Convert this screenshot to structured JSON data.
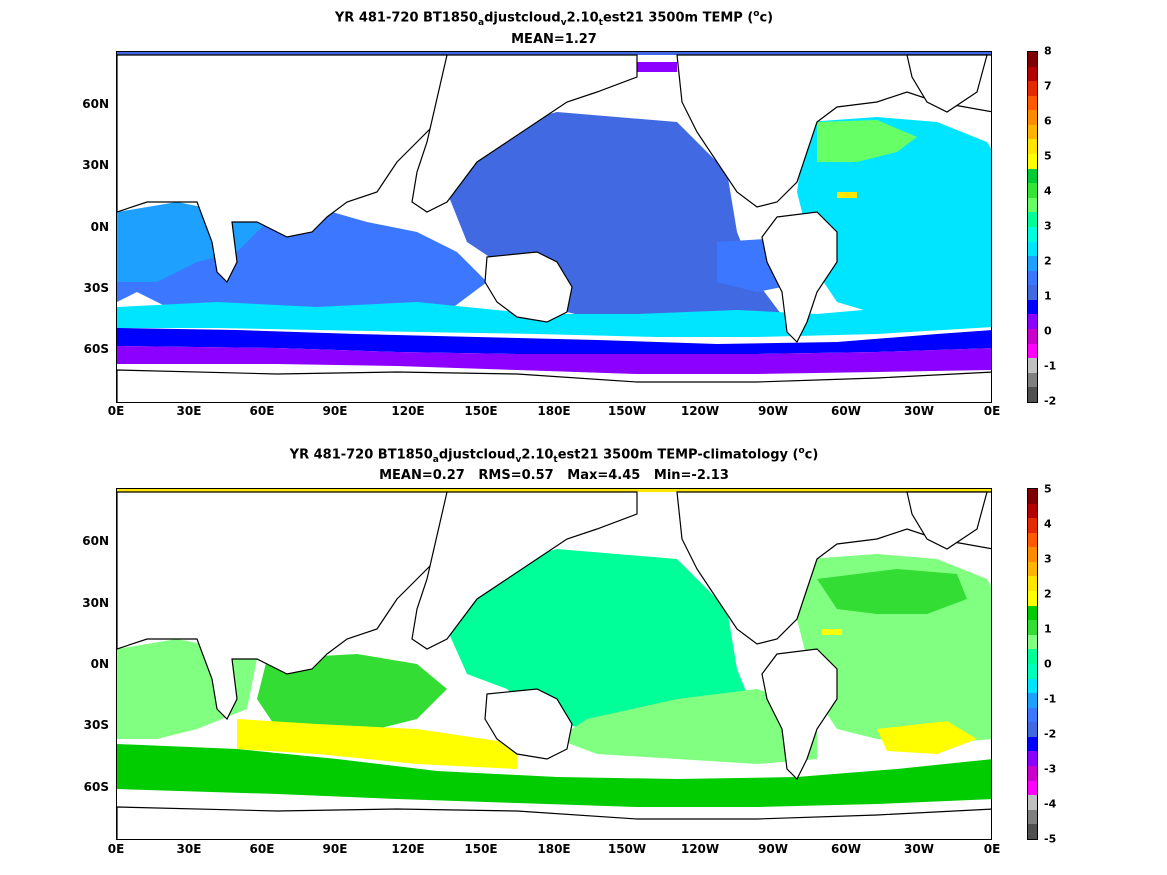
{
  "top_panel": {
    "title": {
      "part1": "YR 481-720 BT1850",
      "sub1": "a",
      "part2": "djustcloud",
      "sub2": "v",
      "part3": "2.10",
      "sub3": "t",
      "part4": "est21 3500m TEMP (",
      "sup": "o",
      "part5": "c)"
    },
    "stats": "MEAN=1.27",
    "colorbar_ticks": [
      "8",
      "7",
      "6",
      "5",
      "4",
      "3",
      "2",
      "1",
      "0",
      "-1",
      "-2"
    ],
    "colorbar_colors": [
      "#7f0000",
      "#b30000",
      "#e62a00",
      "#ff5a00",
      "#ff8c00",
      "#ffb400",
      "#ffe600",
      "#ffff00",
      "#00cc33",
      "#33e633",
      "#66ff66",
      "#00ff99",
      "#00ffdd",
      "#00e5ff",
      "#1ea0ff",
      "#3c78ff",
      "#4169e1",
      "#0000ff",
      "#8b00ff",
      "#cc00cc",
      "#ff00ff",
      "#c0c0c0",
      "#808080",
      "#505050"
    ]
  },
  "bottom_panel": {
    "title": {
      "part1": "YR 481-720 BT1850",
      "sub1": "a",
      "part2": "djustcloud",
      "sub2": "v",
      "part3": "2.10",
      "sub3": "t",
      "part4": "est21 3500m TEMP-climatology (",
      "sup": "o",
      "part5": "c)"
    },
    "stats": "MEAN=0.27   RMS=0.57   Max=4.45   Min=-2.13",
    "colorbar_ticks": [
      "5",
      "4",
      "3",
      "2",
      "1",
      "0",
      "-1",
      "-2",
      "-3",
      "-4",
      "-5"
    ],
    "colorbar_colors": [
      "#7f0000",
      "#b30000",
      "#e62a00",
      "#ff5a00",
      "#ff8c00",
      "#ffb400",
      "#ffe600",
      "#ffff00",
      "#00cc00",
      "#33dd33",
      "#80ff80",
      "#00ff99",
      "#00ffbb",
      "#00e5ff",
      "#1ea0ff",
      "#3c78ff",
      "#4169e1",
      "#0000ff",
      "#8b00ff",
      "#cc00cc",
      "#ff00ff",
      "#c0c0c0",
      "#808080",
      "#505050"
    ]
  },
  "axes": {
    "x_ticks": [
      "0E",
      "30E",
      "60E",
      "90E",
      "120E",
      "150E",
      "180E",
      "150W",
      "120W",
      "90W",
      "60W",
      "30W",
      "0E"
    ],
    "y_ticks": [
      "60N",
      "30N",
      "0N",
      "30S",
      "60S"
    ]
  }
}
